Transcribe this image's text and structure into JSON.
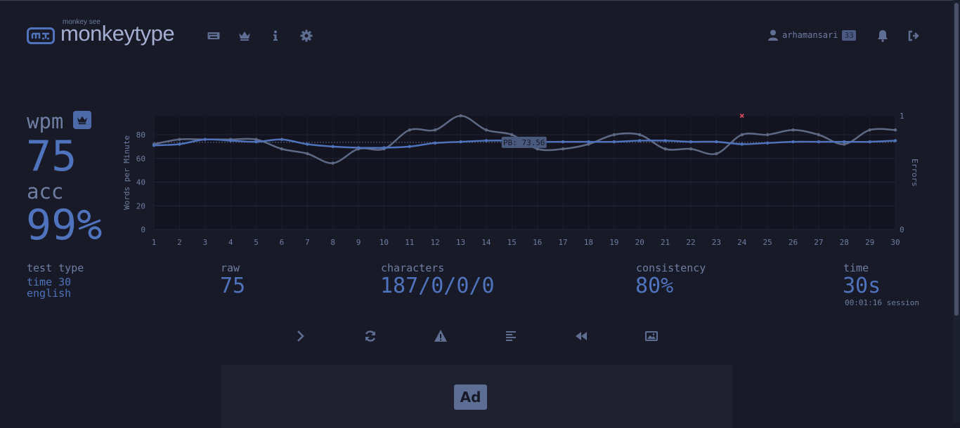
{
  "header": {
    "logo_sub": "monkey see",
    "logo_title": "monkeytype",
    "nav_icons": [
      "keyboard-icon",
      "crown-icon",
      "info-icon",
      "gear-icon"
    ],
    "username": "arhamansari",
    "user_level": "33",
    "notification_icon": "bell-icon",
    "logout_icon": "sign-out-icon"
  },
  "results": {
    "wpm_label": "wpm",
    "wpm": "75",
    "acc_label": "acc",
    "acc": "99%",
    "test_type_label": "test type",
    "test_type_line1": "time 30",
    "test_type_line2": "english",
    "raw_label": "raw",
    "raw": "75",
    "characters_label": "characters",
    "characters": "187/0/0/0",
    "consistency_label": "consistency",
    "consistency": "80%",
    "time_label": "time",
    "time": "30s",
    "session": "00:01:16 session"
  },
  "actions": [
    "next-test-icon",
    "restart-icon",
    "report-icon",
    "words-history-icon",
    "replay-icon",
    "screenshot-icon"
  ],
  "ad": {
    "label": "Ad"
  },
  "colors": {
    "background": "#181a27",
    "accent": "#4f73bd",
    "text": "#6f7ea3",
    "raw_line": "#5e6a85",
    "error": "#d94d5e"
  },
  "chart_data": {
    "type": "line",
    "x": [
      1,
      2,
      3,
      4,
      5,
      6,
      7,
      8,
      9,
      10,
      11,
      12,
      13,
      14,
      15,
      16,
      17,
      18,
      19,
      20,
      21,
      22,
      23,
      24,
      25,
      26,
      27,
      28,
      29,
      30
    ],
    "xlabel": "",
    "ylabel": "Words per Minute",
    "y2label": "Errors",
    "ylim": [
      0,
      96
    ],
    "y2lim": [
      0,
      1
    ],
    "yticks": [
      0,
      20,
      40,
      60,
      80
    ],
    "y2ticks": [
      0,
      1
    ],
    "grid": true,
    "series": [
      {
        "values": [
          71,
          72,
          76,
          75,
          74,
          76,
          72,
          70,
          69,
          69,
          70,
          73,
          74,
          75,
          75,
          74,
          74,
          74,
          74,
          75,
          75,
          74,
          74,
          72,
          73,
          74,
          74,
          74,
          74,
          75
        ]
      },
      {
        "values": [
          72,
          76,
          76,
          76,
          76,
          68,
          64,
          56,
          68,
          68,
          84,
          84,
          96,
          84,
          80,
          68,
          68,
          72,
          80,
          80,
          68,
          68,
          64,
          80,
          80,
          84,
          80,
          72,
          84,
          84
        ]
      }
    ],
    "errors": [
      {
        "x": 24,
        "value": 1
      }
    ],
    "annotation": {
      "text": "PB: 73.56",
      "y": 73.56
    }
  }
}
